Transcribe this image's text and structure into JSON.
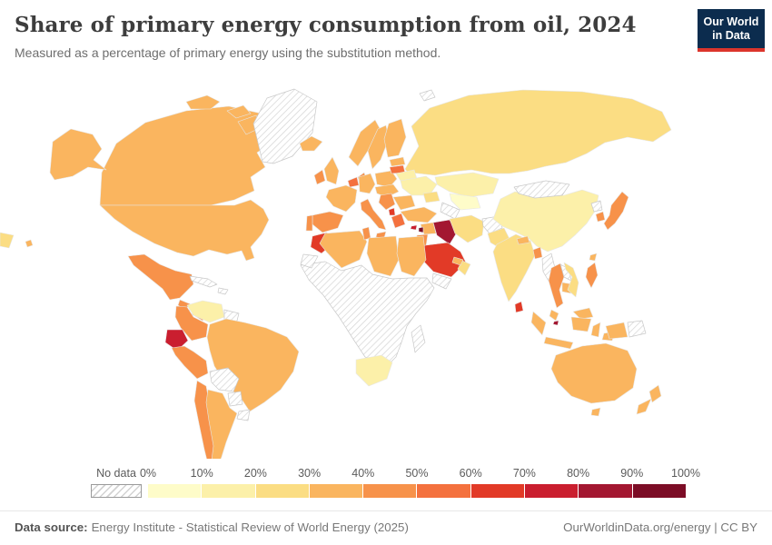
{
  "header": {
    "title": "Share of primary energy consumption from oil, 2024",
    "subtitle": "Measured as a percentage of primary energy using the substitution method."
  },
  "logo": {
    "line1": "Our World",
    "line2": "in Data",
    "bg_color": "#0c2c4e",
    "accent_color": "#dc352c"
  },
  "legend": {
    "no_data_label": "No data",
    "tick_labels": [
      "0%",
      "10%",
      "20%",
      "30%",
      "40%",
      "50%",
      "60%",
      "70%",
      "80%",
      "90%",
      "100%"
    ],
    "bins": [
      {
        "range": "0-10%",
        "color": "#fefcc9"
      },
      {
        "range": "10-20%",
        "color": "#fcf0a9"
      },
      {
        "range": "20-30%",
        "color": "#fbdd83"
      },
      {
        "range": "30-40%",
        "color": "#fab55f"
      },
      {
        "range": "40-50%",
        "color": "#f7924a"
      },
      {
        "range": "50-60%",
        "color": "#f4713e"
      },
      {
        "range": "60-70%",
        "color": "#e23a27"
      },
      {
        "range": "70-80%",
        "color": "#ca1e2f"
      },
      {
        "range": "80-90%",
        "color": "#a31731"
      },
      {
        "range": "90-100%",
        "color": "#7c0d26"
      }
    ]
  },
  "footer": {
    "source_label": "Data source:",
    "source_text": "Energy Institute - Statistical Review of World Energy (2025)",
    "right_text": "OurWorldinData.org/energy | CC BY"
  },
  "chart_data": {
    "type": "heatmap",
    "variant": "world-choropleth",
    "title": "Share of primary energy consumption from oil, 2024",
    "unit": "% of primary energy (substitution method)",
    "bins": [
      "0-10%",
      "10-20%",
      "20-30%",
      "30-40%",
      "40-50%",
      "50-60%",
      "60-70%",
      "70-80%",
      "80-90%",
      "90-100%",
      "No data"
    ],
    "regions": {
      "Canada": "30-40%",
      "United States": "30-40%",
      "Greenland": "No data",
      "Mexico": "40-50%",
      "Guatemala": "40-50%",
      "Nicaragua": "No data",
      "Cuba": "No data",
      "Haiti": "No data",
      "Venezuela": "10-20%",
      "Guyana": "No data",
      "Colombia": "40-50%",
      "Ecuador": "70-80%",
      "Peru": "40-50%",
      "Brazil": "30-40%",
      "Bolivia": "No data",
      "Paraguay": "No data",
      "Uruguay": "No data",
      "Chile": "40-50%",
      "Argentina": "30-40%",
      "Iceland": "30-40%",
      "Norway": "30-40%",
      "Sweden": "30-40%",
      "Finland": "30-40%",
      "Denmark": "40-50%",
      "United Kingdom": "30-40%",
      "Ireland": "40-50%",
      "Netherlands": "50-60%",
      "Belgium": "40-50%",
      "Germany": "30-40%",
      "France": "30-40%",
      "Spain": "40-50%",
      "Portugal": "40-50%",
      "Italy": "40-50%",
      "Poland": "30-40%",
      "Czechia": "30-40%",
      "Hungary": "30-40%",
      "Romania": "30-40%",
      "Bulgaria": "30-40%",
      "Croatia": "40-50%",
      "Albania": "60-70%",
      "Greece": "50-60%",
      "Estonia": "30-40%",
      "Latvia": "30-40%",
      "Lithuania": "50-60%",
      "Belarus": "10-20%",
      "Ukraine": "10-20%",
      "Russia": "20-30%",
      "Svalbard": "No data",
      "Kazakhstan": "10-20%",
      "Uzbekistan": "0-10%",
      "Turkmenistan": "No data",
      "Azerbaijan": "20-30%",
      "Turkey": "30-40%",
      "Cyprus": "70-80%",
      "Syria": "30-40%",
      "Lebanon": "90-100%",
      "Jordan": "40-50%",
      "Iraq": "80-90%",
      "Saudi Arabia": "60-70%",
      "Yemen": "No data",
      "Oman": "20-30%",
      "United Arab Emirates": "30-40%",
      "Iran": "20-30%",
      "Afghanistan": "No data",
      "Pakistan": "20-30%",
      "India": "20-30%",
      "Nepal": "30-40%",
      "Bangladesh": "40-50%",
      "Sri Lanka": "60-70%",
      "Myanmar": "No data",
      "Thailand": "40-50%",
      "Laos": "No data",
      "Cambodia": "30-40%",
      "Vietnam": "20-30%",
      "Malaysia": "30-40%",
      "Singapore": "80-90%",
      "Indonesia": "30-40%",
      "Philippines": "40-50%",
      "China": "10-20%",
      "Mongolia": "No data",
      "North Korea": "No data",
      "South Korea": "40-50%",
      "Japan": "40-50%",
      "Taiwan": "30-40%",
      "Papua New Guinea": "No data",
      "Australia": "30-40%",
      "New Zealand": "30-40%",
      "Morocco": "60-70%",
      "Western Sahara": "No data",
      "Algeria": "30-40%",
      "Tunisia": "40-50%",
      "Libya": "30-40%",
      "Egypt": "30-40%",
      "Sub-Saharan Africa": "No data",
      "South Africa": "10-20%",
      "Madagascar": "No data"
    }
  }
}
